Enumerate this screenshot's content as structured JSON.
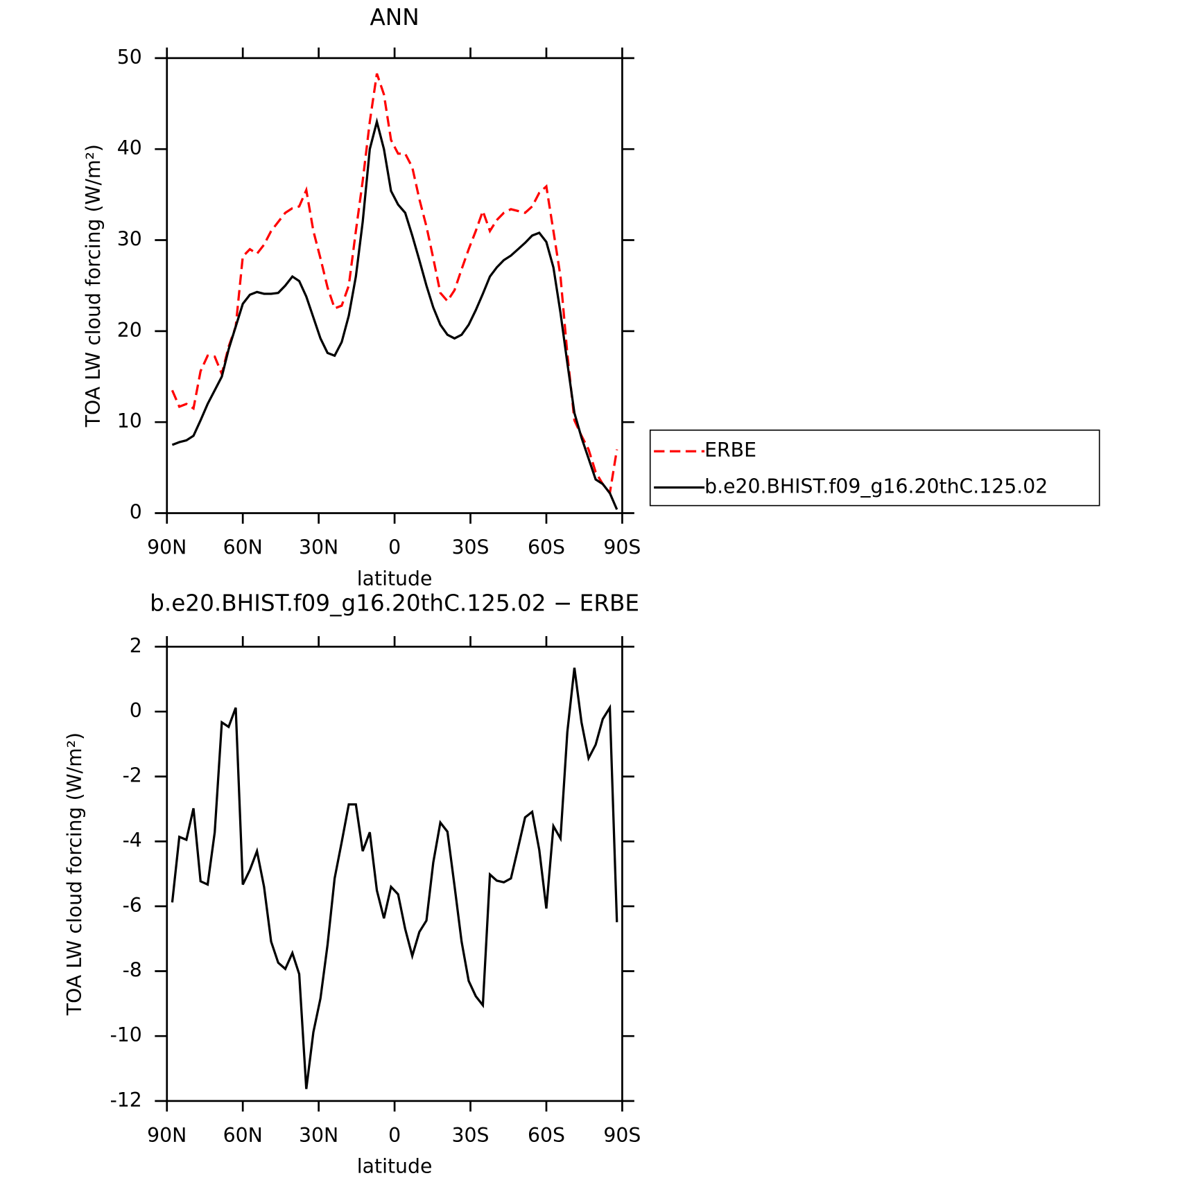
{
  "chart_data": [
    {
      "type": "line",
      "title": "ANN",
      "x_label": "latitude",
      "y_label": "TOA LW cloud forcing (W/m²)",
      "x": [
        87.9,
        85.1,
        82.3,
        79.5,
        76.7,
        73.9,
        71.1,
        68.3,
        65.6,
        62.8,
        60.0,
        57.2,
        54.4,
        51.6,
        48.8,
        46.0,
        43.2,
        40.4,
        37.7,
        34.9,
        32.1,
        29.3,
        26.5,
        23.7,
        20.9,
        18.1,
        15.3,
        12.6,
        9.8,
        7.0,
        4.2,
        1.4,
        -1.4,
        -4.2,
        -7.0,
        -9.8,
        -12.6,
        -15.3,
        -18.1,
        -20.9,
        -23.7,
        -26.5,
        -29.3,
        -32.1,
        -34.9,
        -37.7,
        -40.4,
        -43.2,
        -46.0,
        -48.8,
        -51.6,
        -54.4,
        -57.2,
        -60.0,
        -62.8,
        -65.6,
        -68.3,
        -71.1,
        -73.9,
        -76.7,
        -79.5,
        -82.3,
        -85.1,
        -87.9
      ],
      "series": [
        {
          "name": "ERBE",
          "color": "#ff0000",
          "dashed": true,
          "values": [
            13.5,
            11.7,
            12.0,
            11.5,
            15.6,
            17.3,
            17.2,
            15.3,
            18.3,
            20.5,
            28.2,
            29.0,
            28.5,
            29.5,
            31.0,
            32.0,
            33.0,
            33.5,
            33.7,
            35.5,
            31.0,
            28.0,
            24.8,
            22.5,
            22.8,
            25.0,
            31.0,
            36.5,
            43.0,
            48.3,
            46.0,
            41.0,
            39.5,
            39.5,
            38.0,
            34.5,
            31.5,
            28.0,
            24.2,
            23.3,
            24.5,
            26.8,
            29.0,
            31.0,
            33.2,
            31.0,
            32.2,
            33.0,
            33.4,
            33.2,
            33.0,
            33.7,
            35.2,
            35.9,
            31.0,
            26.0,
            17.5,
            10.2,
            8.5,
            7.0,
            4.5,
            3.2,
            2.2,
            7.0
          ]
        },
        {
          "name": "b.e20.BHIST.f09_g16.20thC.125.02",
          "color": "#000000",
          "dashed": false,
          "values": [
            7.5,
            7.8,
            8.0,
            8.5,
            10.2,
            12.0,
            13.5,
            15.0,
            18.0,
            20.5,
            23.0,
            24.0,
            24.3,
            24.1,
            24.1,
            24.2,
            25.0,
            26.0,
            25.5,
            23.8,
            21.5,
            19.2,
            17.6,
            17.3,
            18.8,
            21.7,
            26.0,
            32.0,
            40.0,
            43.0,
            40.0,
            35.4,
            33.9,
            33.0,
            30.5,
            27.8,
            25.0,
            22.6,
            20.7,
            19.6,
            19.2,
            19.6,
            20.7,
            22.3,
            24.1,
            26.0,
            27.0,
            27.8,
            28.3,
            29.0,
            29.7,
            30.5,
            30.8,
            29.8,
            27.0,
            22.0,
            16.5,
            11.0,
            8.3,
            6.0,
            3.7,
            3.2,
            2.2,
            0.4
          ]
        }
      ],
      "xlim": [
        90,
        -90
      ],
      "xticks": [
        {
          "value": 90,
          "label": "90N"
        },
        {
          "value": 60,
          "label": "60N"
        },
        {
          "value": 30,
          "label": "30N"
        },
        0,
        {
          "value": -30,
          "label": "30S"
        },
        {
          "value": -60,
          "label": "60S"
        },
        {
          "value": -90,
          "label": "90S"
        }
      ],
      "ylim": [
        0,
        50
      ],
      "yticks": [
        0,
        10,
        20,
        30,
        40,
        50
      ],
      "legend": "right"
    },
    {
      "type": "line",
      "title": "b.e20.BHIST.f09_g16.20thC.125.02 − ERBE",
      "x_label": "latitude",
      "y_label": "TOA LW cloud forcing (W/m²)",
      "x": [
        87.9,
        85.1,
        82.3,
        79.5,
        76.7,
        73.9,
        71.1,
        68.3,
        65.6,
        62.8,
        60.0,
        57.2,
        54.4,
        51.6,
        48.8,
        46.0,
        43.2,
        40.4,
        37.7,
        34.9,
        32.1,
        29.3,
        26.5,
        23.7,
        20.9,
        18.1,
        15.3,
        12.6,
        9.8,
        7.0,
        4.2,
        1.4,
        -1.4,
        -4.2,
        -7.0,
        -9.8,
        -12.6,
        -15.3,
        -18.1,
        -20.9,
        -23.7,
        -26.5,
        -29.3,
        -32.1,
        -34.9,
        -37.7,
        -40.4,
        -43.2,
        -46.0,
        -48.8,
        -51.6,
        -54.4,
        -57.2,
        -60.0,
        -62.8,
        -65.6,
        -68.3,
        -71.1,
        -73.9,
        -76.7,
        -79.5,
        -82.3,
        -85.1,
        -87.9
      ],
      "values": [
        -5.88,
        -3.86,
        -3.95,
        -2.98,
        -5.23,
        -5.33,
        -3.72,
        -0.33,
        -0.47,
        0.12,
        -5.33,
        -4.88,
        -4.3,
        -5.4,
        -7.09,
        -7.74,
        -7.93,
        -7.44,
        -8.09,
        -11.63,
        -9.88,
        -8.84,
        -7.19,
        -5.14,
        -4.02,
        -2.86,
        -2.86,
        -4.3,
        -3.72,
        -5.51,
        -6.37,
        -5.4,
        -5.63,
        -6.7,
        -7.53,
        -6.79,
        -6.44,
        -4.65,
        -3.42,
        -3.7,
        -5.37,
        -7.09,
        -8.3,
        -8.77,
        -9.05,
        -5.02,
        -5.21,
        -5.26,
        -5.14,
        -4.21,
        -3.26,
        -3.09,
        -4.26,
        -6.07,
        -3.53,
        -3.91,
        -0.63,
        1.35,
        -0.33,
        -1.44,
        -1.02,
        -0.23,
        0.12,
        -6.49
      ],
      "color": "#000000",
      "xlim": [
        90,
        -90
      ],
      "xticks": [
        {
          "value": 90,
          "label": "90N"
        },
        {
          "value": 60,
          "label": "60N"
        },
        {
          "value": 30,
          "label": "30N"
        },
        0,
        {
          "value": -30,
          "label": "30S"
        },
        {
          "value": -60,
          "label": "60S"
        },
        {
          "value": -90,
          "label": "90S"
        }
      ],
      "ylim": [
        -12,
        2
      ],
      "yticks": [
        -12,
        -10,
        -8,
        -6,
        -4,
        -2,
        0,
        2
      ]
    }
  ]
}
